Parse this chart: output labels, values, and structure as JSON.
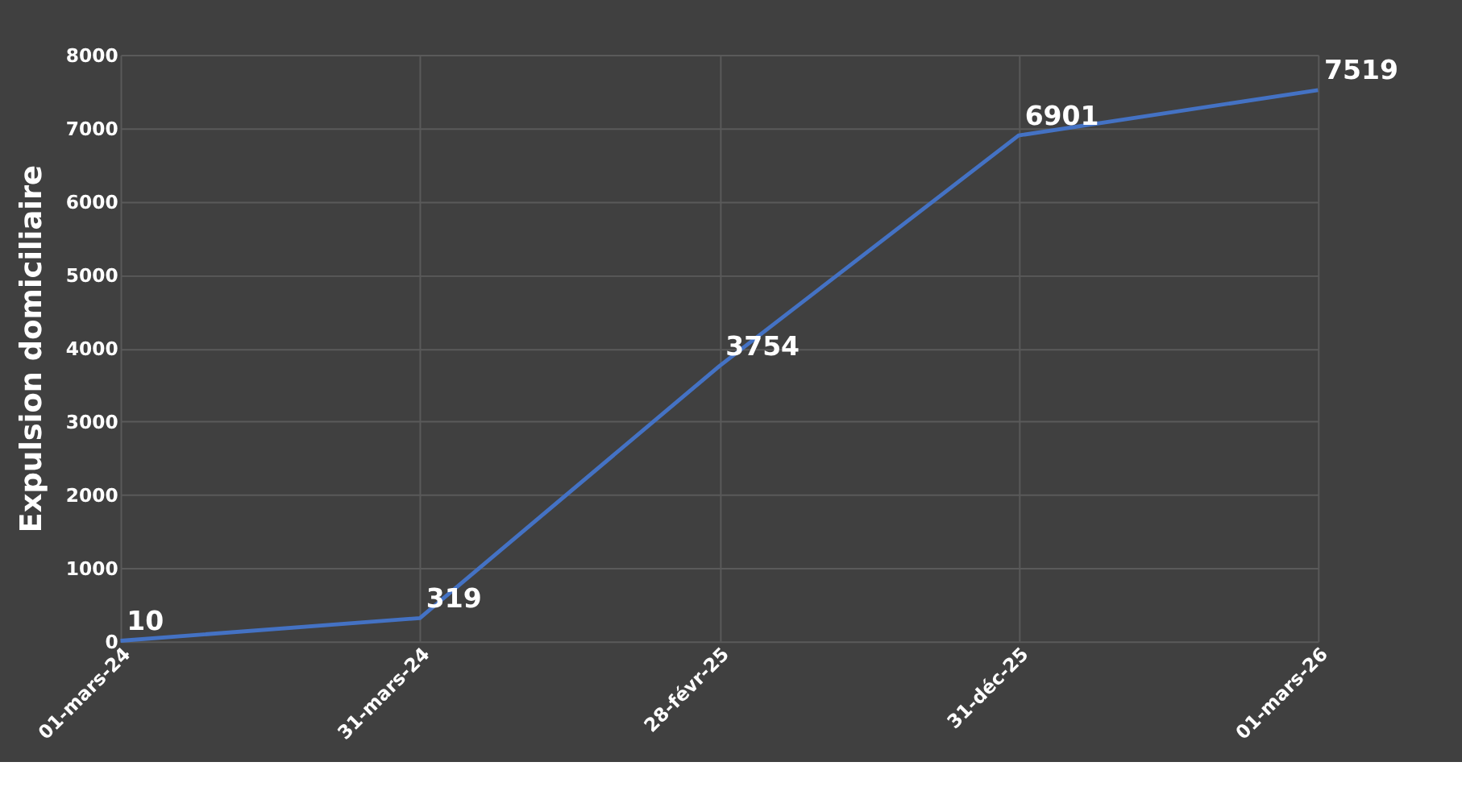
{
  "chart_data": {
    "type": "line",
    "ylabel": "Expulsion domiciliaire",
    "categories": [
      "01-mars-24",
      "31-mars-24",
      "28-févr-25",
      "31-déc-25",
      "01-mars-26"
    ],
    "series": [
      {
        "color": "#4472c4",
        "values": [
          10,
          319,
          3754,
          6901,
          7519
        ]
      }
    ],
    "ylim": [
      0,
      8000
    ],
    "yticks": [
      0,
      1000,
      2000,
      3000,
      4000,
      5000,
      6000,
      7000,
      8000
    ],
    "grid": true,
    "data_labels": true,
    "marker": "none",
    "line_style": "solid"
  }
}
